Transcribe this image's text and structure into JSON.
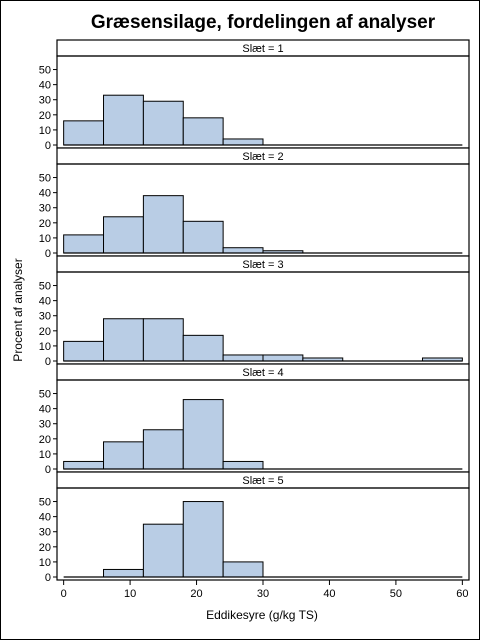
{
  "chart_data": {
    "type": "bar",
    "title": "Græsensilage, fordelingen af analyser",
    "xlabel": "Eddikesyre (g/kg TS)",
    "ylabel": "Procent af analyser",
    "xlim": [
      -1,
      61
    ],
    "ylim": [
      0,
      55
    ],
    "x_ticks": [
      "0",
      "10",
      "20",
      "30",
      "40",
      "50",
      "60"
    ],
    "y_ticks": [
      "0",
      "10",
      "20",
      "30",
      "40",
      "50"
    ],
    "bin_width": 6,
    "bar_color": "#b9cde5",
    "grid": false,
    "panels": [
      {
        "label": "Slæt = 1",
        "bins": [
          {
            "x0": 0,
            "x1": 6,
            "value": 16
          },
          {
            "x0": 6,
            "x1": 12,
            "value": 33
          },
          {
            "x0": 12,
            "x1": 18,
            "value": 29
          },
          {
            "x0": 18,
            "x1": 24,
            "value": 18
          },
          {
            "x0": 24,
            "x1": 30,
            "value": 4
          }
        ]
      },
      {
        "label": "Slæt = 2",
        "bins": [
          {
            "x0": 0,
            "x1": 6,
            "value": 12
          },
          {
            "x0": 6,
            "x1": 12,
            "value": 24
          },
          {
            "x0": 12,
            "x1": 18,
            "value": 38
          },
          {
            "x0": 18,
            "x1": 24,
            "value": 21
          },
          {
            "x0": 24,
            "x1": 30,
            "value": 3.5
          },
          {
            "x0": 30,
            "x1": 36,
            "value": 1.5
          }
        ]
      },
      {
        "label": "Slæt = 3",
        "bins": [
          {
            "x0": 0,
            "x1": 6,
            "value": 13
          },
          {
            "x0": 6,
            "x1": 12,
            "value": 28
          },
          {
            "x0": 12,
            "x1": 18,
            "value": 28
          },
          {
            "x0": 18,
            "x1": 24,
            "value": 17
          },
          {
            "x0": 24,
            "x1": 30,
            "value": 4
          },
          {
            "x0": 30,
            "x1": 36,
            "value": 4
          },
          {
            "x0": 36,
            "x1": 42,
            "value": 2
          },
          {
            "x0": 54,
            "x1": 60,
            "value": 2
          }
        ]
      },
      {
        "label": "Slæt = 4",
        "bins": [
          {
            "x0": 0,
            "x1": 6,
            "value": 5
          },
          {
            "x0": 6,
            "x1": 12,
            "value": 18
          },
          {
            "x0": 12,
            "x1": 18,
            "value": 26
          },
          {
            "x0": 18,
            "x1": 24,
            "value": 46
          },
          {
            "x0": 24,
            "x1": 30,
            "value": 5
          }
        ]
      },
      {
        "label": "Slæt = 5",
        "bins": [
          {
            "x0": 6,
            "x1": 12,
            "value": 5
          },
          {
            "x0": 12,
            "x1": 18,
            "value": 35
          },
          {
            "x0": 18,
            "x1": 24,
            "value": 50
          },
          {
            "x0": 24,
            "x1": 30,
            "value": 10
          }
        ]
      }
    ]
  }
}
